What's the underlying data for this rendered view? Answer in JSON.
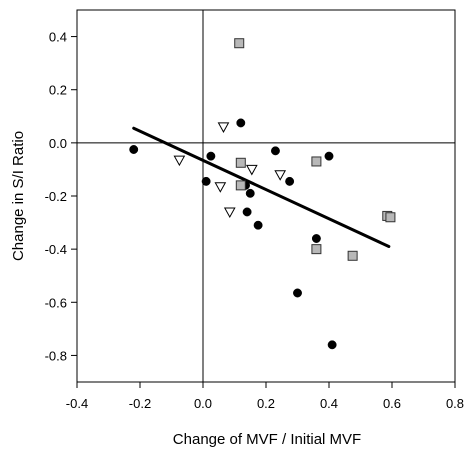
{
  "chart_data": {
    "type": "scatter",
    "xlabel": "Change of MVF / Initial MVF",
    "ylabel": "Change in S/I Ratio",
    "xlim": [
      -0.4,
      0.8
    ],
    "ylim": [
      -0.9,
      0.5
    ],
    "x_ticks": [
      -0.4,
      -0.2,
      0.0,
      0.2,
      0.4,
      0.6,
      0.8
    ],
    "x_tick_labels": [
      "-0.4",
      "-0.2",
      "0.0",
      "0.2",
      "0.4",
      "0.6",
      "0.8"
    ],
    "y_ticks": [
      0.4,
      0.2,
      0.0,
      -0.2,
      -0.4,
      -0.6,
      -0.8
    ],
    "y_tick_labels": [
      "0.4",
      "0.2",
      "0.0",
      "-0.2",
      "-0.4",
      "-0.6",
      "-0.8"
    ],
    "reference_lines": {
      "x": 0.0,
      "y": 0.0
    },
    "series": [
      {
        "marker": "circle",
        "color": "#000000",
        "x": [
          -0.22,
          0.01,
          0.025,
          0.12,
          0.23,
          0.135,
          0.15,
          0.14,
          0.175,
          0.275,
          0.36,
          0.4,
          0.3,
          0.41
        ],
        "y": [
          -0.025,
          -0.145,
          -0.05,
          0.075,
          -0.03,
          -0.16,
          -0.19,
          -0.26,
          -0.31,
          -0.145,
          -0.36,
          -0.05,
          -0.565,
          -0.76
        ]
      },
      {
        "marker": "square",
        "color": "#b8b8b8",
        "x": [
          0.115,
          0.12,
          0.12,
          0.36,
          0.36,
          0.475,
          0.585,
          0.595
        ],
        "y": [
          0.375,
          -0.075,
          -0.16,
          -0.07,
          -0.4,
          -0.425,
          -0.275,
          -0.28
        ]
      },
      {
        "marker": "triangle-down",
        "color": "#ffffff",
        "x": [
          -0.075,
          0.065,
          0.055,
          0.085,
          0.155,
          0.245
        ],
        "y": [
          -0.065,
          0.06,
          -0.165,
          -0.26,
          -0.1,
          -0.12
        ]
      }
    ],
    "trendline": {
      "x": [
        -0.22,
        0.59
      ],
      "y": [
        0.055,
        -0.39
      ]
    }
  }
}
